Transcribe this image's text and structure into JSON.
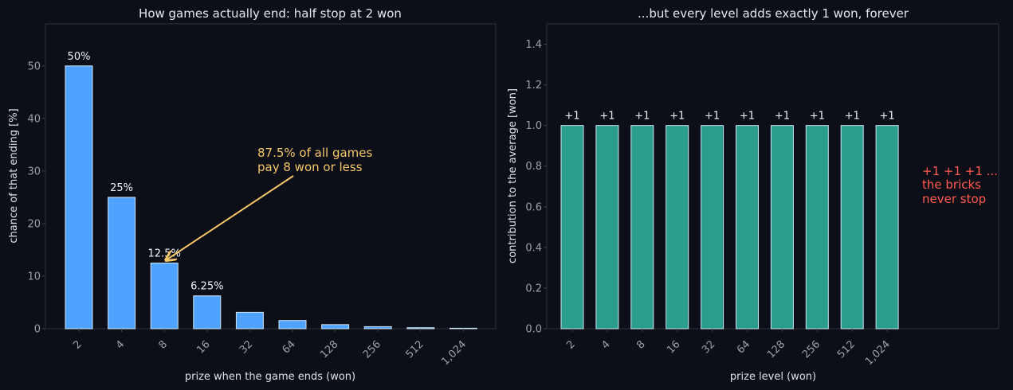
{
  "colors": {
    "background": "#0c0f17",
    "plot_background": "#0c0f17",
    "left_bar": "#4fa3ff",
    "right_bar": "#2a9d8f",
    "bar_edge": "#cfe3f5",
    "annotation_left": "#f5c66a",
    "annotation_right": "#ff5a4f"
  },
  "chart_data": [
    {
      "type": "bar",
      "title": "How games actually end: half stop at 2 won",
      "xlabel": "prize when the game ends (won)",
      "ylabel": "chance of that ending [%]",
      "categories": [
        "2",
        "4",
        "8",
        "16",
        "32",
        "64",
        "128",
        "256",
        "512",
        "1,024"
      ],
      "values": [
        50,
        25,
        12.5,
        6.25,
        3.125,
        1.5625,
        0.78125,
        0.390625,
        0.1953125,
        0.09765625
      ],
      "data_labels": [
        "50%",
        "25%",
        "12.5%",
        "6.25%",
        "",
        "",
        "",
        "",
        "",
        ""
      ],
      "ylim": [
        0,
        58
      ],
      "yticks": [
        0,
        10,
        20,
        30,
        40,
        50
      ],
      "grid": false,
      "annotation": {
        "text": [
          "87.5% of all games",
          "pay 8 won or less"
        ],
        "target_category": "8",
        "target_value": 12.5
      }
    },
    {
      "type": "bar",
      "title": "...but every level adds exactly 1 won, forever",
      "xlabel": "prize level (won)",
      "ylabel": "contribution to the average [won]",
      "categories": [
        "2",
        "4",
        "8",
        "16",
        "32",
        "64",
        "128",
        "256",
        "512",
        "1,024"
      ],
      "values": [
        1,
        1,
        1,
        1,
        1,
        1,
        1,
        1,
        1,
        1
      ],
      "data_labels": [
        "+1",
        "+1",
        "+1",
        "+1",
        "+1",
        "+1",
        "+1",
        "+1",
        "+1",
        "+1"
      ],
      "ylim": [
        0,
        1.5
      ],
      "yticks": [
        0.0,
        0.2,
        0.4,
        0.6,
        0.8,
        1.0,
        1.2,
        1.4
      ],
      "grid": false,
      "annotation": {
        "text": [
          "+1 +1 +1 ...",
          "the bricks",
          "never stop"
        ]
      }
    }
  ]
}
